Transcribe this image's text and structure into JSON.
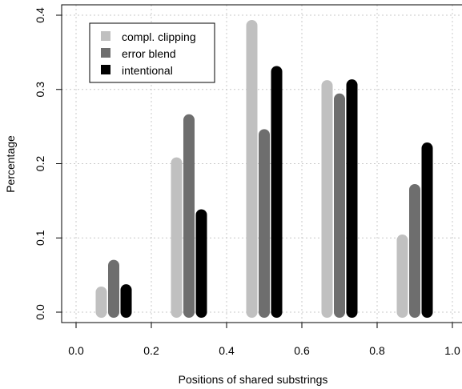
{
  "chart_data": {
    "type": "bar",
    "xlabel": "Positions of shared substrings",
    "ylabel": "Percentage",
    "xlim": [
      0.0,
      1.0
    ],
    "ylim": [
      0.0,
      0.4
    ],
    "xticks": [
      "0.0",
      "0.2",
      "0.4",
      "0.6",
      "0.8",
      "1.0"
    ],
    "yticks": [
      "0.0",
      "0.1",
      "0.2",
      "0.3",
      "0.4"
    ],
    "grid": true,
    "legend_position": "top-left",
    "series": [
      {
        "name": "compl. clipping",
        "color": "#c0c0c0",
        "x": [
          0.067,
          0.267,
          0.467,
          0.667,
          0.867
        ],
        "values": [
          0.027,
          0.201,
          0.386,
          0.305,
          0.097
        ]
      },
      {
        "name": "error blend",
        "color": "#6e6e6e",
        "x": [
          0.1,
          0.3,
          0.5,
          0.7,
          0.9
        ],
        "values": [
          0.063,
          0.259,
          0.239,
          0.287,
          0.165
        ]
      },
      {
        "name": "intentional",
        "color": "#000000",
        "x": [
          0.133,
          0.333,
          0.533,
          0.733,
          0.933
        ],
        "values": [
          0.03,
          0.131,
          0.324,
          0.306,
          0.221
        ]
      }
    ]
  }
}
